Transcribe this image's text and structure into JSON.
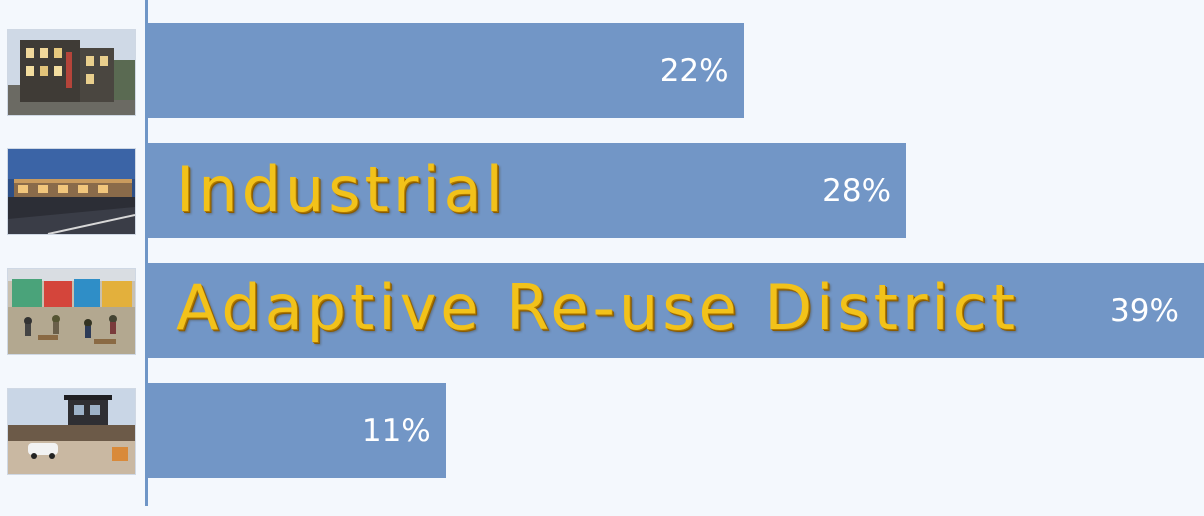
{
  "chart_data": {
    "type": "bar",
    "orientation": "horizontal",
    "categories": [
      "",
      "Industrial",
      "Adaptive Re-use District",
      ""
    ],
    "values": [
      22,
      28,
      39,
      11
    ],
    "value_labels": [
      "22%",
      "28%",
      "39%",
      "11%"
    ],
    "xlim": [
      0,
      39
    ],
    "title": "",
    "xlabel": "",
    "ylabel": "",
    "grid": false,
    "bar_color": "#7296c6",
    "label_color": "#f2c21a",
    "value_label_color": "#ffffff",
    "thumbnails": [
      "apartment-building-photo",
      "industrial-building-photo",
      "adaptive-reuse-market-photo",
      "commercial-building-photo"
    ]
  }
}
